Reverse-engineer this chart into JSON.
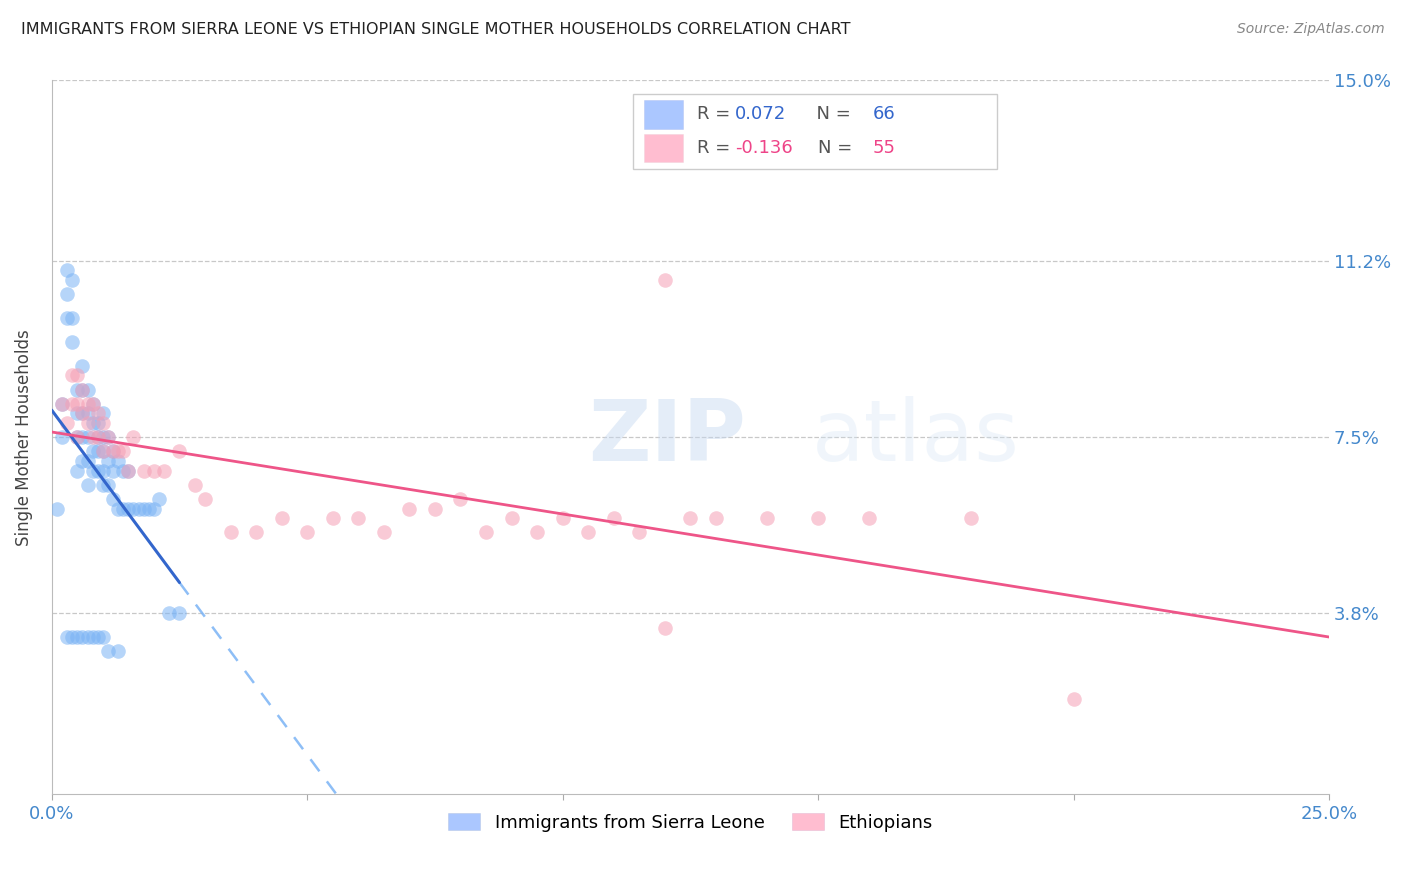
{
  "title": "IMMIGRANTS FROM SIERRA LEONE VS ETHIOPIAN SINGLE MOTHER HOUSEHOLDS CORRELATION CHART",
  "source": "Source: ZipAtlas.com",
  "ylabel": "Single Mother Households",
  "xlim": [
    0.0,
    0.25
  ],
  "ylim": [
    0.0,
    0.15
  ],
  "ytick_labels_right": [
    "15.0%",
    "11.2%",
    "7.5%",
    "3.8%"
  ],
  "ytick_values_right": [
    0.15,
    0.112,
    0.075,
    0.038
  ],
  "grid_color": "#c8c8c8",
  "background_color": "#ffffff",
  "series1_color": "#7ab3f5",
  "series2_color": "#f5a0b5",
  "series1_line_color": "#3366cc",
  "series2_line_color": "#ee5588",
  "watermark": "ZIPatlas",
  "legend_series1_color": "#6699ff",
  "legend_series2_color": "#ff88aa",
  "sierra_leone_x": [
    0.001,
    0.002,
    0.002,
    0.003,
    0.003,
    0.003,
    0.004,
    0.004,
    0.004,
    0.005,
    0.005,
    0.005,
    0.005,
    0.006,
    0.006,
    0.006,
    0.006,
    0.006,
    0.007,
    0.007,
    0.007,
    0.007,
    0.007,
    0.008,
    0.008,
    0.008,
    0.008,
    0.009,
    0.009,
    0.009,
    0.009,
    0.01,
    0.01,
    0.01,
    0.01,
    0.01,
    0.011,
    0.011,
    0.011,
    0.012,
    0.012,
    0.012,
    0.013,
    0.013,
    0.014,
    0.014,
    0.015,
    0.015,
    0.016,
    0.017,
    0.018,
    0.019,
    0.02,
    0.021,
    0.023,
    0.025,
    0.003,
    0.004,
    0.005,
    0.006,
    0.007,
    0.008,
    0.009,
    0.01,
    0.011,
    0.013
  ],
  "sierra_leone_y": [
    0.06,
    0.075,
    0.082,
    0.1,
    0.105,
    0.11,
    0.095,
    0.1,
    0.108,
    0.068,
    0.075,
    0.08,
    0.085,
    0.07,
    0.075,
    0.08,
    0.085,
    0.09,
    0.065,
    0.07,
    0.075,
    0.08,
    0.085,
    0.068,
    0.072,
    0.078,
    0.082,
    0.068,
    0.072,
    0.075,
    0.078,
    0.065,
    0.068,
    0.072,
    0.075,
    0.08,
    0.065,
    0.07,
    0.075,
    0.062,
    0.068,
    0.072,
    0.06,
    0.07,
    0.06,
    0.068,
    0.06,
    0.068,
    0.06,
    0.06,
    0.06,
    0.06,
    0.06,
    0.062,
    0.038,
    0.038,
    0.033,
    0.033,
    0.033,
    0.033,
    0.033,
    0.033,
    0.033,
    0.033,
    0.03,
    0.03
  ],
  "ethiopian_x": [
    0.002,
    0.003,
    0.004,
    0.004,
    0.005,
    0.005,
    0.005,
    0.006,
    0.006,
    0.007,
    0.007,
    0.008,
    0.008,
    0.009,
    0.009,
    0.01,
    0.01,
    0.011,
    0.012,
    0.013,
    0.014,
    0.015,
    0.016,
    0.018,
    0.02,
    0.022,
    0.025,
    0.028,
    0.03,
    0.035,
    0.04,
    0.045,
    0.05,
    0.055,
    0.06,
    0.065,
    0.07,
    0.075,
    0.08,
    0.085,
    0.09,
    0.095,
    0.1,
    0.105,
    0.11,
    0.115,
    0.12,
    0.125,
    0.13,
    0.14,
    0.15,
    0.16,
    0.18,
    0.2,
    0.12
  ],
  "ethiopian_y": [
    0.082,
    0.078,
    0.082,
    0.088,
    0.075,
    0.082,
    0.088,
    0.08,
    0.085,
    0.078,
    0.082,
    0.075,
    0.082,
    0.075,
    0.08,
    0.072,
    0.078,
    0.075,
    0.072,
    0.072,
    0.072,
    0.068,
    0.075,
    0.068,
    0.068,
    0.068,
    0.072,
    0.065,
    0.062,
    0.055,
    0.055,
    0.058,
    0.055,
    0.058,
    0.058,
    0.055,
    0.06,
    0.06,
    0.062,
    0.055,
    0.058,
    0.055,
    0.058,
    0.055,
    0.058,
    0.055,
    0.108,
    0.058,
    0.058,
    0.058,
    0.058,
    0.058,
    0.058,
    0.02,
    0.035
  ]
}
